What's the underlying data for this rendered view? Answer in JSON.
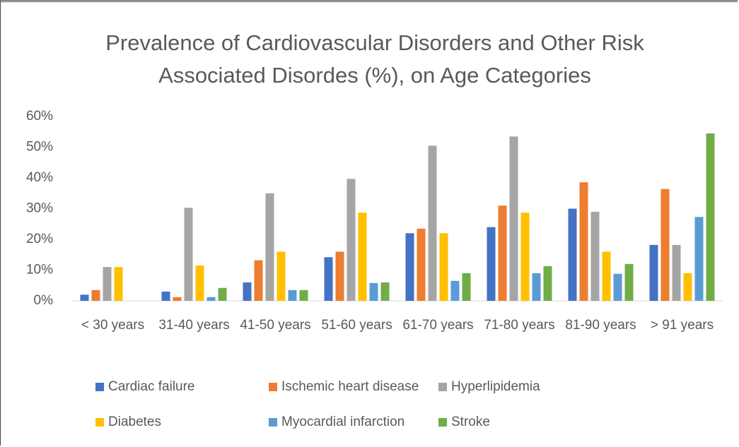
{
  "chart_data": {
    "type": "bar",
    "title": "Prevalence of Cardiovascular Disorders and Other Risk Associated Disordes (%), on Age Categories",
    "categories": [
      "< 30 years",
      "31-40 years",
      "41-50 years",
      "51-60 years",
      "61-70 years",
      "71-80 years",
      "81-90 years",
      "> 91 years"
    ],
    "series": [
      {
        "name": "Cardiac failure",
        "color": "#4472c4",
        "values": [
          2,
          3,
          6,
          14.2,
          22,
          24,
          30,
          18.2
        ]
      },
      {
        "name": "Ischemic heart disease",
        "color": "#ed7d31",
        "values": [
          3.5,
          1.2,
          13.2,
          16,
          23.5,
          31,
          38.6,
          36.4
        ]
      },
      {
        "name": "Hyperlipidemia",
        "color": "#a5a5a5",
        "values": [
          11,
          30.3,
          35,
          39.7,
          50.5,
          53.5,
          29,
          18.2
        ]
      },
      {
        "name": "Diabetes",
        "color": "#ffc000",
        "values": [
          11,
          11.5,
          16,
          28.7,
          22,
          28.7,
          16,
          9
        ]
      },
      {
        "name": "Myocardial infarction",
        "color": "#5b9bd5",
        "values": [
          0,
          1.2,
          3.5,
          5.8,
          6.5,
          9,
          8.8,
          27.3
        ]
      },
      {
        "name": "Stroke",
        "color": "#70ad47",
        "values": [
          0,
          4.2,
          3.5,
          6,
          9,
          11.3,
          12,
          54.5
        ]
      }
    ],
    "ylim": [
      0,
      60
    ],
    "yticks": [
      {
        "value": 0,
        "label": "0%"
      },
      {
        "value": 10,
        "label": "10%"
      },
      {
        "value": 20,
        "label": "20%"
      },
      {
        "value": 30,
        "label": "30%"
      },
      {
        "value": 40,
        "label": "40%"
      },
      {
        "value": 50,
        "label": "50%"
      },
      {
        "value": 60,
        "label": "60%"
      }
    ],
    "grid": false
  }
}
